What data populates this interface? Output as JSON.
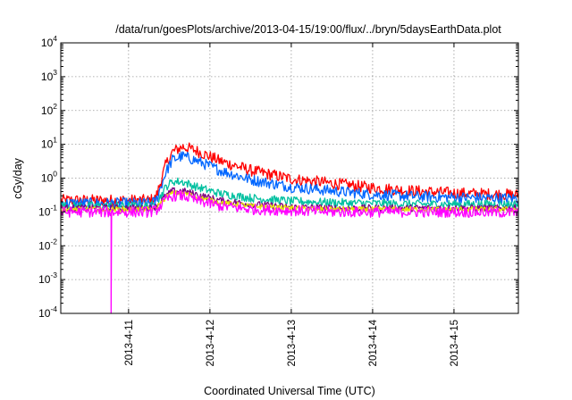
{
  "chart_data": {
    "type": "line",
    "title": "/data/run/goesPlots/archive/2013-04-15/19:00/flux/../bryn/5daysEarthData.plot",
    "xlabel": "Coordinated Universal Time (UTC)",
    "ylabel": "cGy/day",
    "yscale": "log",
    "ylim": [
      0.0001,
      10000
    ],
    "xlim": [
      "2013-04-10 04:00",
      "2013-04-15 19:00"
    ],
    "yticks": [
      {
        "value": 0.0001,
        "base": "10",
        "exp": "-4"
      },
      {
        "value": 0.001,
        "base": "10",
        "exp": "-3"
      },
      {
        "value": 0.01,
        "base": "10",
        "exp": "-2"
      },
      {
        "value": 0.1,
        "base": "10",
        "exp": "-1"
      },
      {
        "value": 1,
        "base": "10",
        "exp": "0"
      },
      {
        "value": 10,
        "base": "10",
        "exp": "1"
      },
      {
        "value": 100,
        "base": "10",
        "exp": "2"
      },
      {
        "value": 1000,
        "base": "10",
        "exp": "3"
      },
      {
        "value": 10000,
        "base": "10",
        "exp": "4"
      }
    ],
    "xticks": [
      {
        "value": "2013-04-11 00:00",
        "label": "2013-4-11"
      },
      {
        "value": "2013-04-12 00:00",
        "label": "2013-4-12"
      },
      {
        "value": "2013-04-13 00:00",
        "label": "2013-4-13"
      },
      {
        "value": "2013-04-14 00:00",
        "label": "2013-4-14"
      },
      {
        "value": "2013-04-15 00:00",
        "label": "2013-4-15"
      }
    ],
    "grid": true,
    "legend": "none",
    "series": [
      {
        "color": "#ff0000",
        "x": [
          "2013-04-10 04:00",
          "2013-04-11 06:00",
          "2013-04-11 08:00",
          "2013-04-11 11:00",
          "2013-04-11 13:00",
          "2013-04-11 16:00",
          "2013-04-11 20:00",
          "2013-04-12 03:00",
          "2013-04-12 12:00",
          "2013-04-13 00:00",
          "2013-04-13 12:00",
          "2013-04-14 00:00",
          "2013-04-14 12:00",
          "2013-04-15 00:00",
          "2013-04-15 19:00"
        ],
        "y": [
          0.22,
          0.22,
          0.25,
          2.5,
          6,
          8.5,
          6.5,
          3.2,
          1.7,
          0.95,
          0.7,
          0.52,
          0.42,
          0.36,
          0.32
        ],
        "noise": 0.35
      },
      {
        "color": "#0066ff",
        "x": [
          "2013-04-10 04:00",
          "2013-04-11 06:00",
          "2013-04-11 08:00",
          "2013-04-11 11:00",
          "2013-04-11 13:00",
          "2013-04-11 16:00",
          "2013-04-11 20:00",
          "2013-04-12 03:00",
          "2013-04-12 12:00",
          "2013-04-13 00:00",
          "2013-04-13 12:00",
          "2013-04-14 00:00",
          "2013-04-14 12:00",
          "2013-04-15 00:00",
          "2013-04-15 19:00"
        ],
        "y": [
          0.18,
          0.18,
          0.2,
          1.5,
          3.5,
          4.5,
          3.3,
          1.7,
          0.9,
          0.55,
          0.42,
          0.33,
          0.29,
          0.27,
          0.25
        ],
        "noise": 0.33
      },
      {
        "color": "#00c0a0",
        "x": [
          "2013-04-10 04:00",
          "2013-04-11 06:00",
          "2013-04-11 08:00",
          "2013-04-11 11:00",
          "2013-04-11 13:00",
          "2013-04-11 16:00",
          "2013-04-11 20:00",
          "2013-04-12 03:00",
          "2013-04-12 12:00",
          "2013-04-13 00:00",
          "2013-04-13 12:00",
          "2013-04-14 00:00",
          "2013-04-14 12:00",
          "2013-04-15 00:00",
          "2013-04-15 19:00"
        ],
        "y": [
          0.15,
          0.15,
          0.16,
          0.55,
          0.8,
          0.78,
          0.55,
          0.35,
          0.26,
          0.21,
          0.19,
          0.18,
          0.17,
          0.17,
          0.17
        ],
        "noise": 0.25
      },
      {
        "color": "#800080",
        "x": [
          "2013-04-10 04:00",
          "2013-04-11 06:00",
          "2013-04-11 08:00",
          "2013-04-11 11:00",
          "2013-04-11 13:00",
          "2013-04-11 16:00",
          "2013-04-11 20:00",
          "2013-04-12 03:00",
          "2013-04-12 12:00",
          "2013-04-13 00:00",
          "2013-04-13 12:00",
          "2013-04-14 00:00",
          "2013-04-14 12:00",
          "2013-04-15 00:00",
          "2013-04-15 19:00"
        ],
        "y": [
          0.13,
          0.13,
          0.14,
          0.3,
          0.42,
          0.42,
          0.33,
          0.22,
          0.17,
          0.14,
          0.13,
          0.13,
          0.13,
          0.13,
          0.13
        ],
        "noise": 0.2
      },
      {
        "color": "#e6e600",
        "x": [
          "2013-04-10 04:00",
          "2013-04-11 06:00",
          "2013-04-11 08:00",
          "2013-04-11 11:00",
          "2013-04-11 13:00",
          "2013-04-11 16:00",
          "2013-04-11 20:00",
          "2013-04-12 03:00",
          "2013-04-12 12:00",
          "2013-04-13 00:00",
          "2013-04-13 12:00",
          "2013-04-14 00:00",
          "2013-04-14 12:00",
          "2013-04-15 00:00",
          "2013-04-15 19:00"
        ],
        "y": [
          0.12,
          0.12,
          0.13,
          0.27,
          0.36,
          0.36,
          0.28,
          0.19,
          0.15,
          0.13,
          0.12,
          0.12,
          0.12,
          0.12,
          0.12
        ],
        "noise": 0.15
      },
      {
        "color": "#ff00ff",
        "x": [
          "2013-04-10 04:00",
          "2013-04-11 06:00",
          "2013-04-11 08:00",
          "2013-04-11 11:00",
          "2013-04-11 13:00",
          "2013-04-11 16:00",
          "2013-04-11 20:00",
          "2013-04-12 03:00",
          "2013-04-12 12:00",
          "2013-04-13 00:00",
          "2013-04-13 12:00",
          "2013-04-14 00:00",
          "2013-04-14 12:00",
          "2013-04-15 00:00",
          "2013-04-15 19:00"
        ],
        "y": [
          0.1,
          0.1,
          0.11,
          0.22,
          0.3,
          0.3,
          0.22,
          0.15,
          0.12,
          0.11,
          0.1,
          0.1,
          0.1,
          0.1,
          0.095
        ],
        "noise": 0.32,
        "dropout": {
          "x": "2013-04-10 18:50",
          "y": 0.0001
        }
      }
    ]
  }
}
